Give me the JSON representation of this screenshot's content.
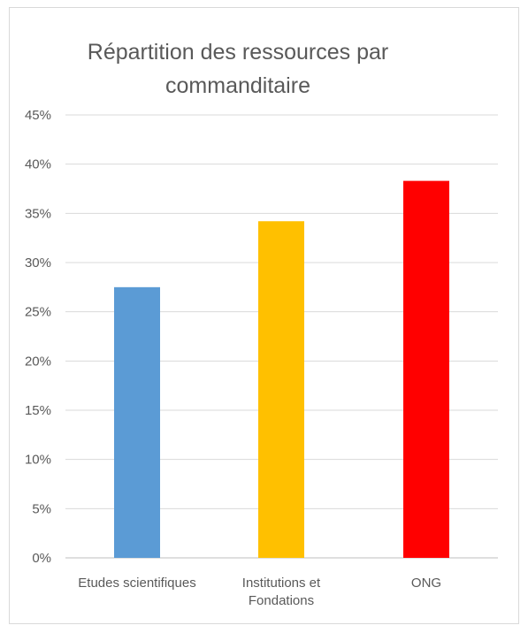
{
  "chart_data": {
    "type": "bar",
    "title_lines": [
      "Répartition des ressources par",
      "commanditaire"
    ],
    "categories": [
      [
        "Etudes scientifiques"
      ],
      [
        "Institutions et",
        "Fondations"
      ],
      [
        "ONG"
      ]
    ],
    "values": [
      0.275,
      0.342,
      0.383
    ],
    "colors": [
      "#5b9bd5",
      "#ffc000",
      "#ff0000"
    ],
    "ylim": [
      0,
      0.45
    ],
    "yticks": [
      0,
      0.05,
      0.1,
      0.15,
      0.2,
      0.25,
      0.3,
      0.35,
      0.4,
      0.45
    ],
    "ytick_labels": [
      "0%",
      "5%",
      "10%",
      "15%",
      "20%",
      "25%",
      "30%",
      "35%",
      "40%",
      "45%"
    ],
    "grid": true,
    "gridline_color": "#d9d9d9",
    "xlabel": "",
    "ylabel": "",
    "legend": "none"
  }
}
